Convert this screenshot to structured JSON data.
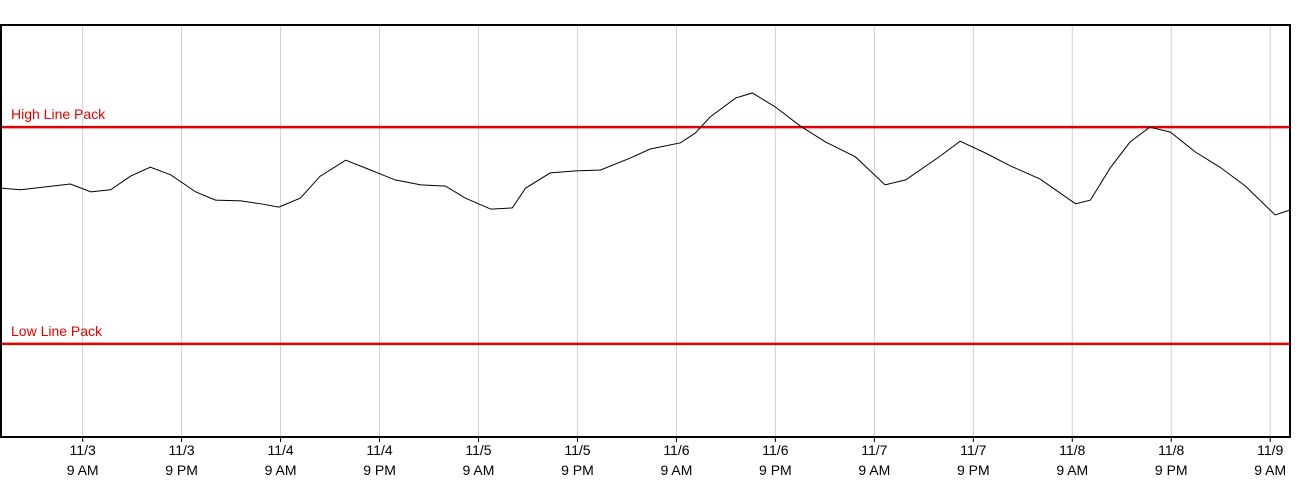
{
  "chart_data": {
    "type": "line",
    "x": [
      -9.9,
      -7.5,
      -4.5,
      -1.5,
      1,
      3.4,
      5.8,
      8.2,
      10.7,
      13.7,
      16.1,
      19.2,
      21.6,
      23.8,
      26.4,
      28.8,
      31.9,
      34.9,
      37.9,
      41,
      44,
      46.4,
      49.5,
      52.1,
      53.7,
      56.7,
      59.8,
      62.8,
      66.4,
      68.8,
      72.5,
      74.3,
      76.1,
      79.2,
      81.2,
      84,
      87,
      90.1,
      93.7,
      97.3,
      99.8,
      104,
      106.4,
      109.5,
      112.5,
      116.1,
      120.4,
      122.2,
      124.6,
      127,
      129.4,
      131.9,
      134.9,
      137.9,
      141,
      144.6,
      146.4
    ],
    "series": [
      {
        "color": "#000000",
        "values": [
          60.4,
          60,
          60.7,
          61.4,
          59.5,
          60,
          63.3,
          65.5,
          63.6,
          59.5,
          57.5,
          57.3,
          56.6,
          55.8,
          58,
          63.3,
          67.2,
          64.8,
          62.4,
          61.2,
          60.9,
          58,
          55.3,
          55.6,
          60.4,
          64.1,
          64.6,
          64.8,
          67.7,
          69.9,
          71.4,
          73.8,
          77.7,
          82.3,
          83.5,
          80.1,
          75.5,
          71.6,
          68,
          61.2,
          62.4,
          68.2,
          71.8,
          68.9,
          65.8,
          62.6,
          56.6,
          57.5,
          65.3,
          71.6,
          75.2,
          74,
          69.2,
          65.5,
          60.9,
          53.9,
          55.1
        ]
      }
    ],
    "reference_lines": [
      {
        "label": "High Line Pack",
        "value": 75.2,
        "color": "#e60000"
      },
      {
        "label": "Low Line Pack",
        "value": 22.6,
        "color": "#e60000"
      }
    ],
    "xlim": [
      -9.9,
      146.4
    ],
    "ylim": [
      0,
      100
    ],
    "xticks": [
      {
        "value": 0,
        "label": [
          "11/3",
          "9 AM"
        ]
      },
      {
        "value": 12,
        "label": [
          "11/3",
          "9 PM"
        ]
      },
      {
        "value": 24,
        "label": [
          "11/4",
          "9 AM"
        ]
      },
      {
        "value": 36,
        "label": [
          "11/4",
          "9 PM"
        ]
      },
      {
        "value": 48,
        "label": [
          "11/5",
          "9 AM"
        ]
      },
      {
        "value": 60,
        "label": [
          "11/5",
          "9 PM"
        ]
      },
      {
        "value": 72,
        "label": [
          "11/6",
          "9 AM"
        ]
      },
      {
        "value": 84,
        "label": [
          "11/6",
          "9 PM"
        ]
      },
      {
        "value": 96,
        "label": [
          "11/7",
          "9 AM"
        ]
      },
      {
        "value": 108,
        "label": [
          "11/7",
          "9 PM"
        ]
      },
      {
        "value": 120,
        "label": [
          "11/8",
          "9 AM"
        ]
      },
      {
        "value": 132,
        "label": [
          "11/8",
          "9 PM"
        ]
      },
      {
        "value": 144,
        "label": [
          "11/9",
          "9 AM"
        ]
      }
    ],
    "grid": true
  }
}
